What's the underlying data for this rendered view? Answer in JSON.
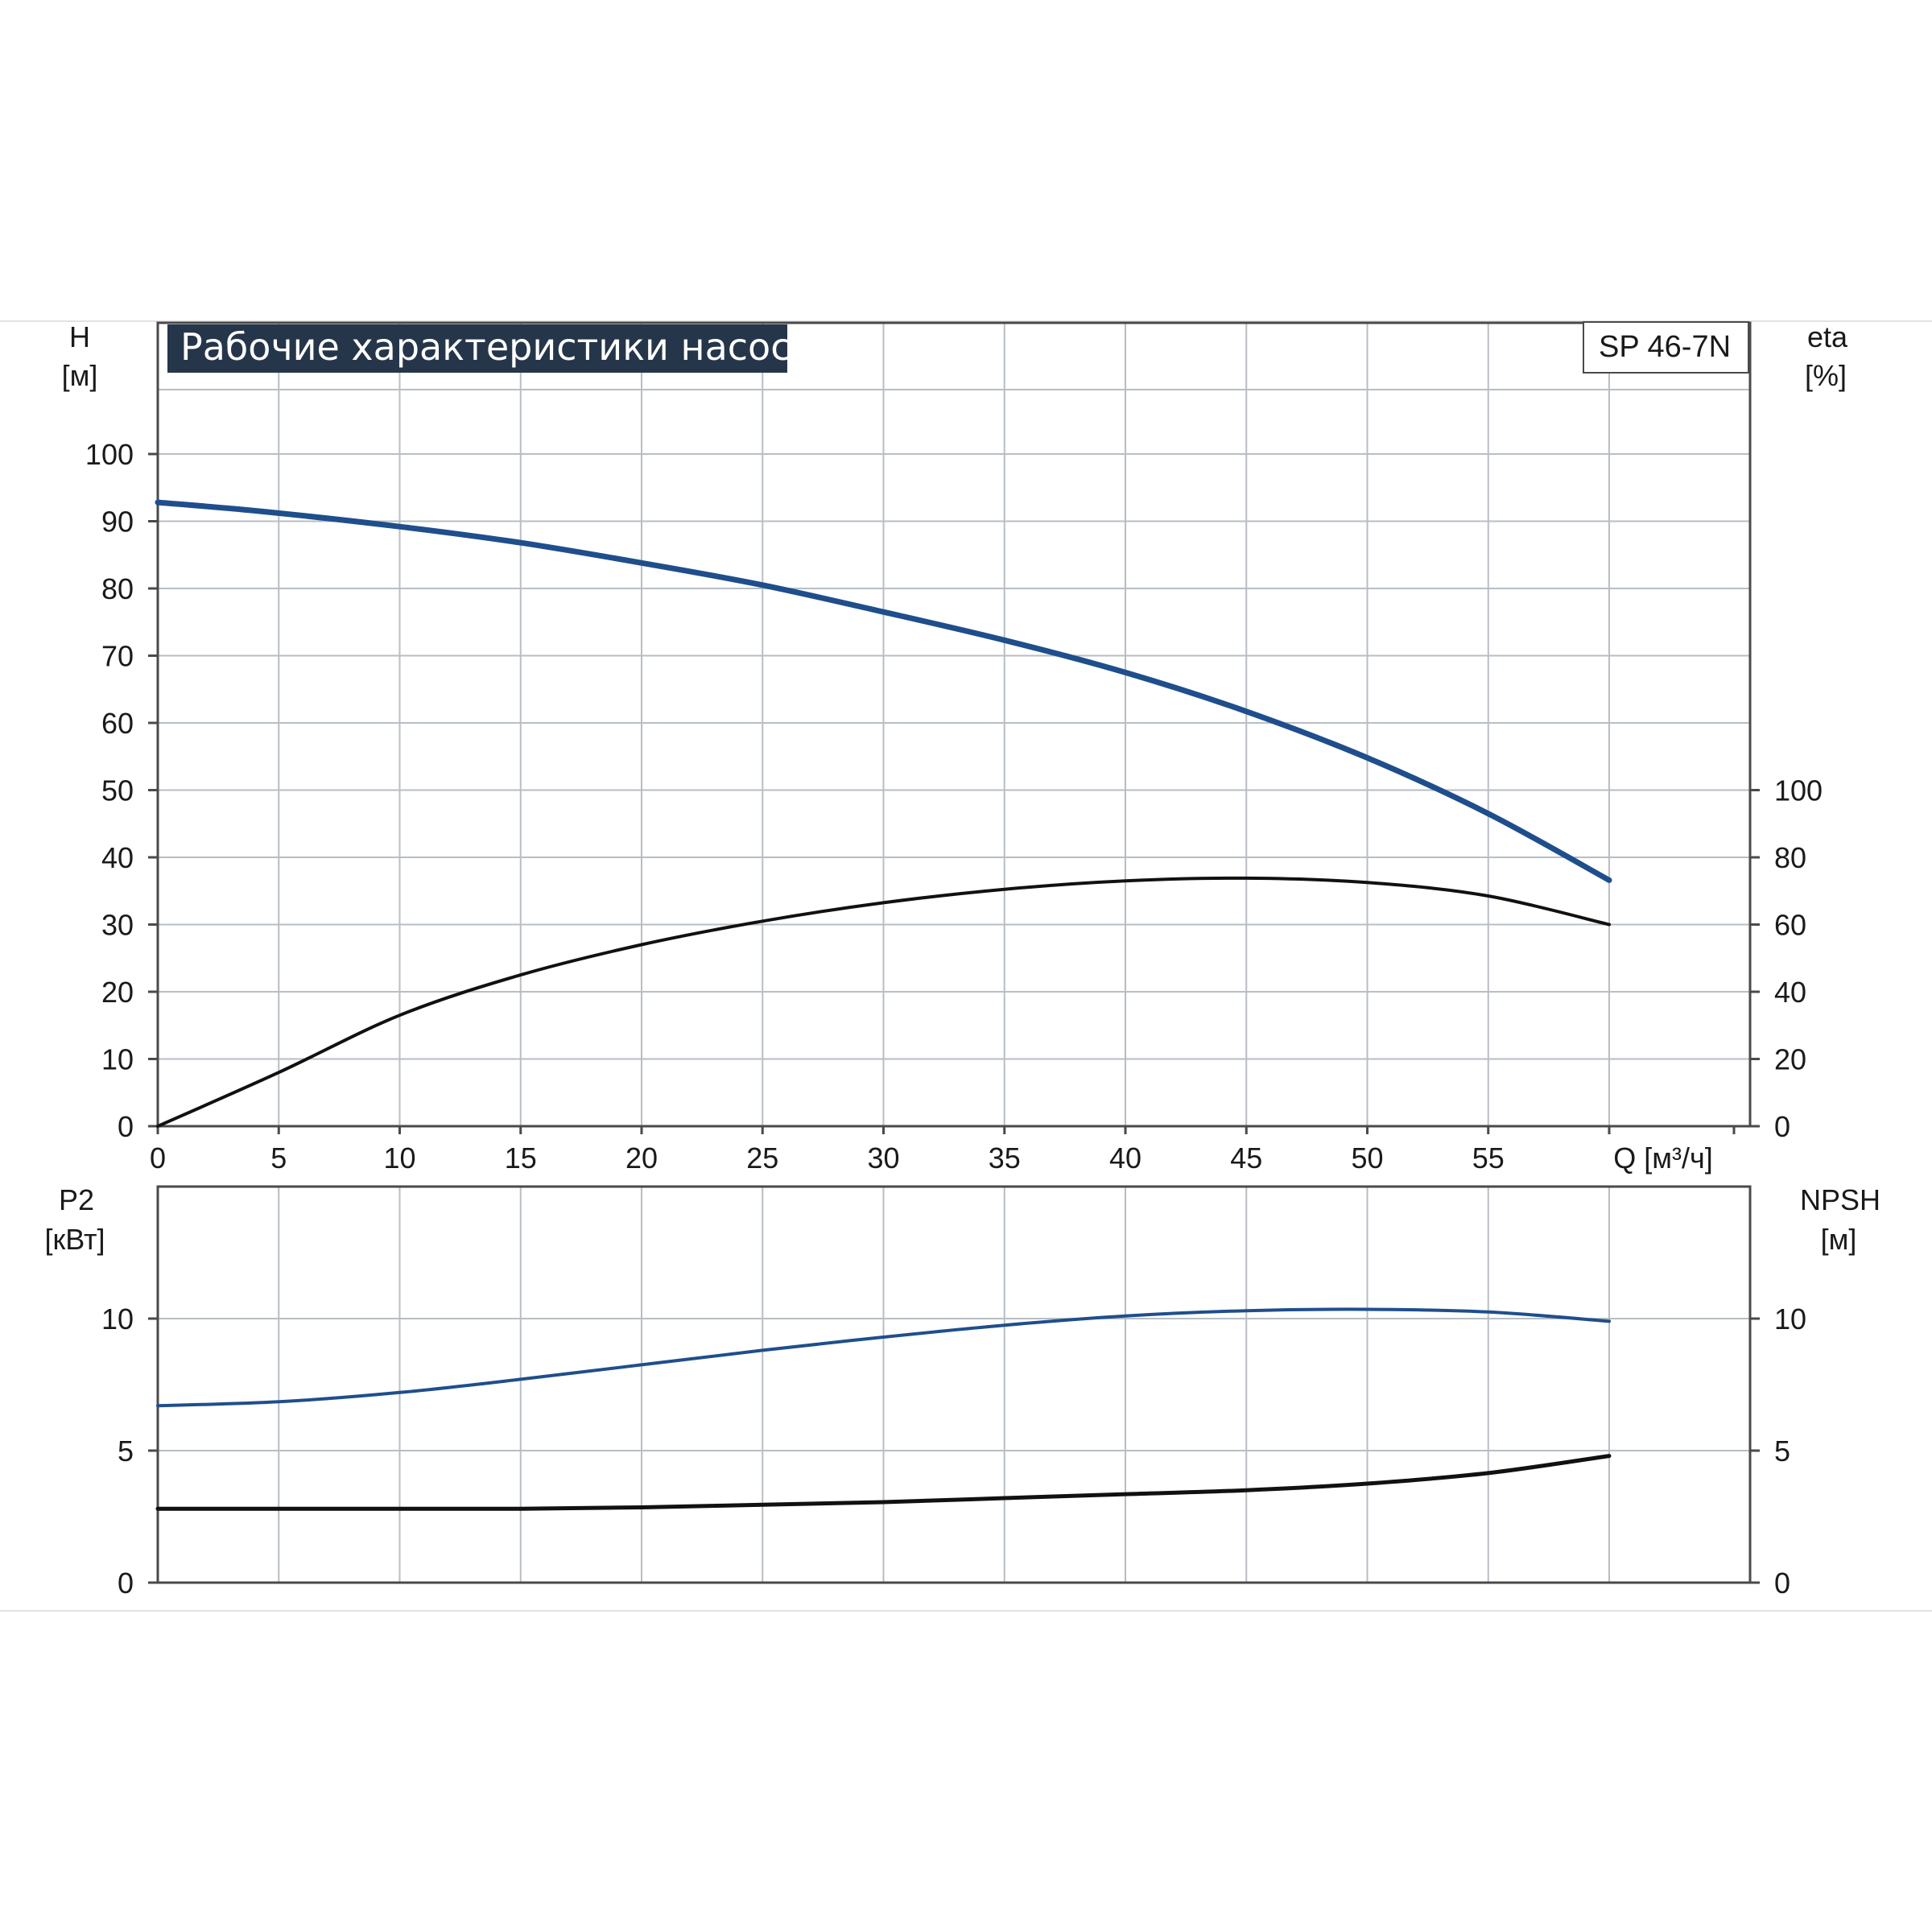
{
  "chart_data": [
    {
      "type": "line",
      "title": "Рабочие характеристики насоса",
      "model_label": "SP 46-7N",
      "xlabel": "Q [м³/ч]",
      "ylabel": "H",
      "ylabel_unit": "[м]",
      "y2label": "eta",
      "y2label_unit": "[%]",
      "xlim": [
        0,
        60
      ],
      "ylim": [
        0,
        110
      ],
      "y2lim": [
        0,
        100
      ],
      "x_ticks": [
        "0",
        "5",
        "10",
        "15",
        "20",
        "25",
        "30",
        "35",
        "40",
        "45",
        "50",
        "55"
      ],
      "y_ticks": [
        "0",
        "10",
        "20",
        "30",
        "40",
        "50",
        "60",
        "70",
        "80",
        "90",
        "100"
      ],
      "y2_ticks": [
        "0",
        "20",
        "40",
        "60",
        "80",
        "100"
      ],
      "grid": true,
      "series": [
        {
          "key": "head",
          "axis": "left",
          "color": "#1f4e8c",
          "x": [
            0,
            4.2,
            10,
            15,
            20,
            25,
            30,
            35,
            40,
            45,
            50,
            55,
            60
          ],
          "y": [
            92.8,
            91.5,
            89.2,
            86.8,
            83.8,
            80.5,
            76.5,
            72.3,
            67.5,
            61.7,
            54.8,
            46.5,
            36.6
          ]
        },
        {
          "key": "efficiency",
          "axis": "right",
          "color": "#111111",
          "x": [
            0,
            5,
            10,
            15,
            20,
            25,
            30,
            35,
            40,
            45,
            50,
            55,
            60
          ],
          "y": [
            0,
            16,
            33,
            45,
            54,
            61,
            66.5,
            70.5,
            73,
            73.8,
            72.5,
            68.5,
            60
          ]
        }
      ]
    },
    {
      "type": "line",
      "ylabel": "P2",
      "ylabel_unit": "[кВт]",
      "y2label": "NPSH",
      "y2label_unit": "[м]",
      "xlim": [
        0,
        60
      ],
      "ylim": [
        0,
        15
      ],
      "y2lim": [
        0,
        15
      ],
      "y_ticks": [
        "0",
        "5",
        "10"
      ],
      "y2_ticks": [
        "0",
        "5",
        "10"
      ],
      "grid": true,
      "series": [
        {
          "key": "power",
          "axis": "left",
          "color": "#1f4e8c",
          "x": [
            0,
            5,
            10,
            15,
            20,
            25,
            30,
            35,
            40,
            45,
            50,
            55,
            60
          ],
          "y": [
            6.7,
            6.85,
            7.2,
            7.7,
            8.25,
            8.8,
            9.3,
            9.75,
            10.1,
            10.3,
            10.35,
            10.25,
            9.9
          ]
        },
        {
          "key": "npsh",
          "axis": "right",
          "color": "#111111",
          "x": [
            0,
            5,
            10,
            15,
            20,
            25,
            30,
            35,
            40,
            45,
            50,
            55,
            60
          ],
          "y": [
            2.8,
            2.8,
            2.8,
            2.8,
            2.85,
            2.95,
            3.05,
            3.2,
            3.35,
            3.5,
            3.75,
            4.15,
            4.8
          ]
        }
      ]
    }
  ]
}
